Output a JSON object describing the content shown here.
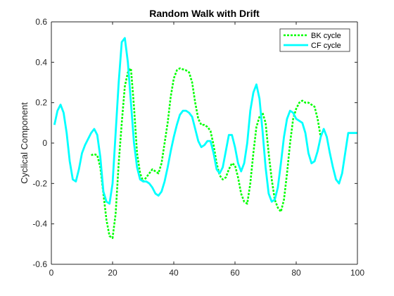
{
  "chart_data": {
    "type": "line",
    "title": "Random Walk with Drift",
    "xlabel": "",
    "ylabel": "Cyclical Component",
    "xlim": [
      0,
      100
    ],
    "ylim": [
      -0.6,
      0.6
    ],
    "x_ticks": [
      0,
      20,
      40,
      60,
      80,
      100
    ],
    "y_ticks": [
      -0.6,
      -0.4,
      -0.2,
      0,
      0.2,
      0.4,
      0.6
    ],
    "grid": false,
    "legend_position": "top-right",
    "series": [
      {
        "name": "BK cycle",
        "color": "#00ff00",
        "style": "dotted",
        "x": [
          13,
          14,
          15,
          16,
          17,
          18,
          19,
          20,
          21,
          22,
          23,
          24,
          25,
          26,
          27,
          28,
          29,
          30,
          31,
          32,
          33,
          34,
          35,
          36,
          37,
          38,
          39,
          40,
          41,
          42,
          43,
          44,
          45,
          46,
          47,
          48,
          49,
          50,
          51,
          52,
          53,
          54,
          55,
          56,
          57,
          58,
          59,
          60,
          61,
          62,
          63,
          64,
          65,
          66,
          67,
          68,
          69,
          70,
          71,
          72,
          73,
          74,
          75,
          76,
          77,
          78,
          79,
          80,
          81,
          82,
          83,
          84,
          85,
          86,
          87,
          88
        ],
        "y": [
          -0.06,
          -0.055,
          -0.06,
          -0.12,
          -0.25,
          -0.38,
          -0.46,
          -0.47,
          -0.35,
          -0.1,
          0.1,
          0.28,
          0.35,
          0.37,
          0.18,
          -0.05,
          -0.15,
          -0.19,
          -0.17,
          -0.15,
          -0.13,
          -0.14,
          -0.15,
          -0.1,
          0.0,
          0.1,
          0.23,
          0.32,
          0.36,
          0.37,
          0.365,
          0.36,
          0.35,
          0.3,
          0.2,
          0.12,
          0.09,
          0.09,
          0.08,
          0.06,
          -0.01,
          -0.1,
          -0.16,
          -0.18,
          -0.17,
          -0.13,
          -0.1,
          -0.11,
          -0.17,
          -0.25,
          -0.29,
          -0.3,
          -0.2,
          -0.05,
          0.08,
          0.13,
          0.15,
          0.1,
          -0.05,
          -0.18,
          -0.28,
          -0.32,
          -0.34,
          -0.28,
          -0.15,
          0.0,
          0.12,
          0.17,
          0.2,
          0.21,
          0.2,
          0.2,
          0.19,
          0.18,
          0.12,
          0.03
        ]
      },
      {
        "name": "CF cycle",
        "color": "#00ffff",
        "style": "solid",
        "x": [
          1,
          2,
          3,
          4,
          5,
          6,
          7,
          8,
          9,
          10,
          11,
          12,
          13,
          14,
          15,
          16,
          17,
          18,
          19,
          20,
          21,
          22,
          23,
          24,
          25,
          26,
          27,
          28,
          29,
          30,
          31,
          32,
          33,
          34,
          35,
          36,
          37,
          38,
          39,
          40,
          41,
          42,
          43,
          44,
          45,
          46,
          47,
          48,
          49,
          50,
          51,
          52,
          53,
          54,
          55,
          56,
          57,
          58,
          59,
          60,
          61,
          62,
          63,
          64,
          65,
          66,
          67,
          68,
          69,
          70,
          71,
          72,
          73,
          74,
          75,
          76,
          77,
          78,
          79,
          80,
          81,
          82,
          83,
          84,
          85,
          86,
          87,
          88,
          89,
          90,
          91,
          92,
          93,
          94,
          95,
          96,
          97,
          98,
          99,
          100
        ],
        "y": [
          0.09,
          0.16,
          0.19,
          0.15,
          0.05,
          -0.09,
          -0.18,
          -0.19,
          -0.13,
          -0.05,
          -0.01,
          0.02,
          0.05,
          0.07,
          0.04,
          -0.07,
          -0.24,
          -0.29,
          -0.3,
          -0.2,
          0.05,
          0.3,
          0.5,
          0.52,
          0.4,
          0.2,
          0.0,
          -0.12,
          -0.18,
          -0.19,
          -0.19,
          -0.2,
          -0.22,
          -0.25,
          -0.26,
          -0.24,
          -0.19,
          -0.12,
          -0.04,
          0.03,
          0.09,
          0.14,
          0.16,
          0.16,
          0.15,
          0.13,
          0.07,
          0.01,
          -0.02,
          -0.01,
          0.01,
          0.01,
          -0.05,
          -0.13,
          -0.15,
          -0.12,
          -0.04,
          0.04,
          0.04,
          -0.02,
          -0.1,
          -0.14,
          -0.1,
          0.0,
          0.16,
          0.25,
          0.29,
          0.22,
          0.06,
          -0.12,
          -0.25,
          -0.29,
          -0.28,
          -0.22,
          -0.1,
          0.03,
          0.12,
          0.16,
          0.15,
          0.12,
          0.11,
          0.1,
          0.05,
          -0.05,
          -0.1,
          -0.09,
          -0.04,
          0.03,
          0.07,
          0.03,
          -0.05,
          -0.12,
          -0.18,
          -0.2,
          -0.15,
          -0.05,
          0.05,
          0.05,
          0.05,
          0.05
        ]
      }
    ]
  }
}
